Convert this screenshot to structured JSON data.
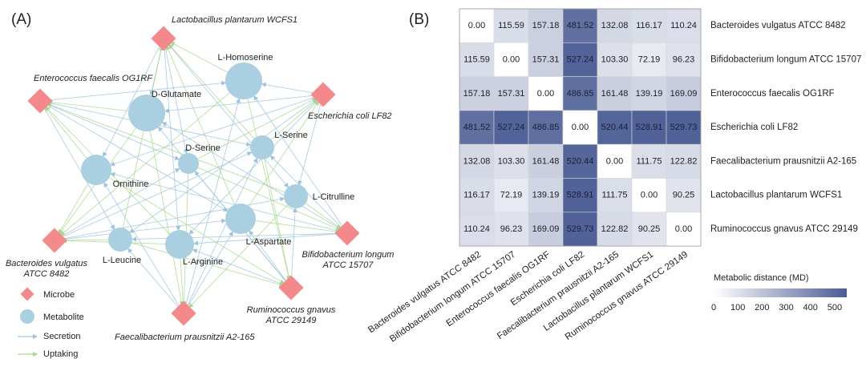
{
  "panels": {
    "a_label": "(A)",
    "b_label": "(B)"
  },
  "network": {
    "microbes": [
      {
        "id": "lp",
        "label": "Lactobacillus plantarum WCFS1"
      },
      {
        "id": "ef",
        "label": "Enterococcus faecalis OG1RF"
      },
      {
        "id": "ec",
        "label": "Escherichia coli LF82"
      },
      {
        "id": "bv",
        "label": "Bacteroides vulgatus ATCC 8482",
        "label_lines": [
          "Bacteroides vulgatus",
          "ATCC 8482"
        ]
      },
      {
        "id": "bl",
        "label": "Bifidobacterium longum ATCC 15707",
        "label_lines": [
          "Bifidobacterium longum",
          "ATCC 15707"
        ]
      },
      {
        "id": "rg",
        "label": "Ruminococcus gnavus ATCC 29149",
        "label_lines": [
          "Ruminococcus gnavus",
          "ATCC 29149"
        ]
      },
      {
        "id": "fp",
        "label": "Faecalibacterium prausnitzii A2-165"
      }
    ],
    "metabolites": [
      {
        "id": "hom",
        "label": "L-Homoserine"
      },
      {
        "id": "glu",
        "label": "D-Glutamate"
      },
      {
        "id": "dser",
        "label": "D-Serine"
      },
      {
        "id": "lser",
        "label": "L-Serine"
      },
      {
        "id": "orn",
        "label": "Ornithine"
      },
      {
        "id": "cit",
        "label": "L-Citrulline"
      },
      {
        "id": "asp",
        "label": "L-Aspartate"
      },
      {
        "id": "leu",
        "label": "L-Leucine"
      },
      {
        "id": "arg",
        "label": "L-Arginine"
      }
    ],
    "legend": {
      "microbe": "Microbe",
      "metabolite": "Metabolite",
      "secretion": "Secretion",
      "uptaking": "Uptaking"
    },
    "colors": {
      "microbe": "#f4898b",
      "metabolite": "#a9cfe0",
      "secretion": "#9cc3dc",
      "uptaking": "#a8d88c"
    }
  },
  "chart_data": {
    "type": "heatmap",
    "title": "",
    "labels": [
      "Bacteroides vulgatus ATCC 8482",
      "Bifidobacterium longum ATCC 15707",
      "Enterococcus faecalis OG1RF",
      "Escherichia coli LF82",
      "Faecalibacterium prausnitzii A2-165",
      "Lactobacillus plantarum WCFS1",
      "Ruminococcus gnavus ATCC 29149"
    ],
    "values": [
      [
        "0.00",
        "115.59",
        "157.18",
        "481.52",
        "132.08",
        "116.17",
        "110.24"
      ],
      [
        "115.59",
        "0.00",
        "157.31",
        "527.24",
        "103.30",
        "72.19",
        "96.23"
      ],
      [
        "157.18",
        "157.31",
        "0.00",
        "486.85",
        "161.48",
        "139.19",
        "169.09"
      ],
      [
        "481.52",
        "527.24",
        "486.85",
        "0.00",
        "520.44",
        "528.91",
        "529.73"
      ],
      [
        "132.08",
        "103.30",
        "161.48",
        "520.44",
        "0.00",
        "111.75",
        "122.82"
      ],
      [
        "116.17",
        "72.19",
        "139.19",
        "528.91",
        "111.75",
        "0.00",
        "90.25"
      ],
      [
        "110.24",
        "96.23",
        "169.09",
        "529.73",
        "122.82",
        "90.25",
        "0.00"
      ]
    ],
    "colorbar": {
      "title": "Metabolic distance (MD)",
      "range": [
        0,
        550
      ],
      "ticks": [
        "0",
        "100",
        "200",
        "300",
        "400",
        "500"
      ],
      "color_low": "#ffffff",
      "color_high": "#4a5c94"
    }
  }
}
